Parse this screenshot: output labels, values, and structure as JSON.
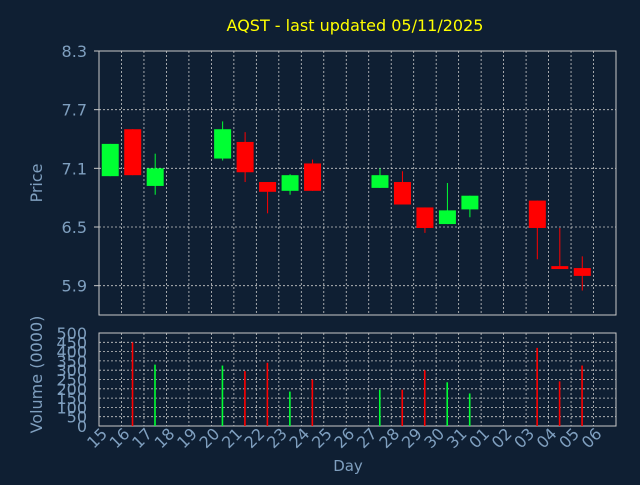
{
  "colors": {
    "background": "#0f1f33",
    "title": "#ffff00",
    "axis_text": "#7f9fbf",
    "grid": "#c8c8c8",
    "up": "#00ff33",
    "down": "#ff0000"
  },
  "chart_data": [
    {
      "type": "candlestick",
      "title": "AQST - last updated 05/11/2025",
      "ylabel": "Price",
      "ylim": [
        5.6,
        8.3
      ],
      "yticks": [
        "8.3",
        "7.7",
        "7.1",
        "6.5",
        "5.9"
      ],
      "grid": true,
      "categories": [
        "15",
        "16",
        "17",
        "18",
        "19",
        "20",
        "21",
        "22",
        "23",
        "24",
        "25",
        "26",
        "27",
        "28",
        "29",
        "30",
        "31",
        "01",
        "02",
        "03",
        "04",
        "05",
        "06"
      ],
      "candles": [
        {
          "x": "15",
          "open": 7.02,
          "close": 7.35,
          "high": 7.35,
          "low": 7.02
        },
        {
          "x": "16",
          "open": 7.5,
          "close": 7.03,
          "high": 7.5,
          "low": 7.03
        },
        {
          "x": "17",
          "open": 6.92,
          "close": 7.1,
          "high": 7.25,
          "low": 6.83
        },
        {
          "x": "20",
          "open": 7.2,
          "close": 7.5,
          "high": 7.58,
          "low": 7.18
        },
        {
          "x": "21",
          "open": 7.37,
          "close": 7.06,
          "high": 7.47,
          "low": 6.96
        },
        {
          "x": "22",
          "open": 6.96,
          "close": 6.86,
          "high": 6.96,
          "low": 6.64
        },
        {
          "x": "23",
          "open": 6.87,
          "close": 7.03,
          "high": 7.04,
          "low": 6.83
        },
        {
          "x": "24",
          "open": 7.15,
          "close": 6.87,
          "high": 7.19,
          "low": 6.87
        },
        {
          "x": "27",
          "open": 6.9,
          "close": 7.03,
          "high": 7.1,
          "low": 6.9
        },
        {
          "x": "28",
          "open": 6.96,
          "close": 6.73,
          "high": 7.07,
          "low": 6.73
        },
        {
          "x": "29",
          "open": 6.7,
          "close": 6.49,
          "high": 6.7,
          "low": 6.44
        },
        {
          "x": "30",
          "open": 6.53,
          "close": 6.67,
          "high": 6.95,
          "low": 6.53
        },
        {
          "x": "31",
          "open": 6.68,
          "close": 6.82,
          "high": 6.82,
          "low": 6.6
        },
        {
          "x": "03",
          "open": 6.77,
          "close": 6.49,
          "high": 6.77,
          "low": 6.17
        },
        {
          "x": "04",
          "open": 6.1,
          "close": 6.07,
          "high": 6.49,
          "low": 6.07
        },
        {
          "x": "05",
          "open": 6.08,
          "close": 6.0,
          "high": 6.2,
          "low": 5.85
        }
      ]
    },
    {
      "type": "bar",
      "ylabel": "Volume (0000)",
      "xlabel": "Day",
      "ylim": [
        0,
        500
      ],
      "yticks": [
        "500",
        "450",
        "400",
        "350",
        "300",
        "250",
        "200",
        "150",
        "100",
        "50",
        "0"
      ],
      "grid": true,
      "categories": [
        "15",
        "16",
        "17",
        "18",
        "19",
        "20",
        "21",
        "22",
        "23",
        "24",
        "25",
        "26",
        "27",
        "28",
        "29",
        "30",
        "31",
        "01",
        "02",
        "03",
        "04",
        "05",
        "06"
      ],
      "bars": [
        {
          "x": "16",
          "value": 450,
          "direction": "down"
        },
        {
          "x": "17",
          "value": 330,
          "direction": "up"
        },
        {
          "x": "20",
          "value": 325,
          "direction": "up"
        },
        {
          "x": "21",
          "value": 295,
          "direction": "down"
        },
        {
          "x": "22",
          "value": 340,
          "direction": "down"
        },
        {
          "x": "23",
          "value": 185,
          "direction": "up"
        },
        {
          "x": "24",
          "value": 250,
          "direction": "down"
        },
        {
          "x": "27",
          "value": 195,
          "direction": "up"
        },
        {
          "x": "28",
          "value": 195,
          "direction": "down"
        },
        {
          "x": "29",
          "value": 300,
          "direction": "down"
        },
        {
          "x": "30",
          "value": 235,
          "direction": "up"
        },
        {
          "x": "31",
          "value": 175,
          "direction": "up"
        },
        {
          "x": "03",
          "value": 420,
          "direction": "down"
        },
        {
          "x": "04",
          "value": 240,
          "direction": "down"
        },
        {
          "x": "05",
          "value": 325,
          "direction": "down"
        }
      ]
    }
  ]
}
